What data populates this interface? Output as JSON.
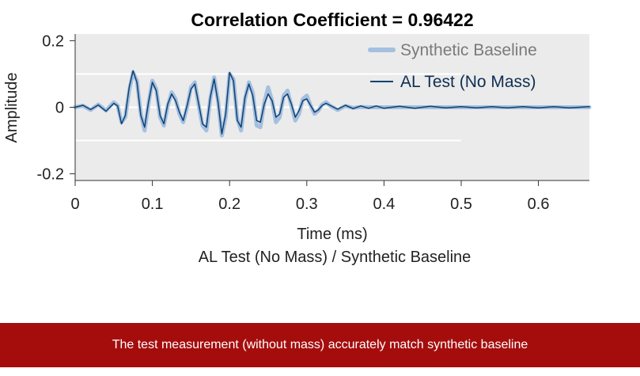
{
  "chart_data": {
    "type": "line",
    "title": "Correlation Coefficient = 0.96422",
    "xlabel": "Time (ms)",
    "ylabel": "Amplitude",
    "xlim": [
      0,
      0.666
    ],
    "ylim": [
      -0.22,
      0.22
    ],
    "xticks": [
      0,
      0.1,
      0.2,
      0.3,
      0.4,
      0.5,
      0.6
    ],
    "xtick_labels": [
      "0",
      "0.1",
      "0.2",
      "0.3",
      "0.4",
      "0.5",
      "0.6"
    ],
    "yticks": [
      0.2,
      0,
      -0.2
    ],
    "ytick_labels": [
      "0.2",
      "0",
      "-0.2"
    ],
    "grid": "partial horizontal white lines at 0.1, 0, -0.1",
    "legend_placement": "top-right",
    "background_color": "#ebebeb",
    "series": [
      {
        "name": "Synthetic Baseline",
        "color": "#a5bfdf",
        "x": [
          0,
          0.01,
          0.02,
          0.03,
          0.04,
          0.05,
          0.055,
          0.06,
          0.065,
          0.07,
          0.075,
          0.08,
          0.085,
          0.09,
          0.095,
          0.1,
          0.105,
          0.11,
          0.115,
          0.12,
          0.125,
          0.13,
          0.135,
          0.14,
          0.145,
          0.15,
          0.155,
          0.16,
          0.165,
          0.17,
          0.175,
          0.18,
          0.185,
          0.19,
          0.195,
          0.2,
          0.205,
          0.21,
          0.215,
          0.22,
          0.225,
          0.23,
          0.235,
          0.24,
          0.245,
          0.25,
          0.255,
          0.26,
          0.265,
          0.27,
          0.275,
          0.28,
          0.285,
          0.29,
          0.295,
          0.3,
          0.305,
          0.31,
          0.315,
          0.32,
          0.325,
          0.33,
          0.34,
          0.35,
          0.36,
          0.37,
          0.38,
          0.39,
          0.4,
          0.42,
          0.44,
          0.46,
          0.48,
          0.5,
          0.52,
          0.54,
          0.56,
          0.58,
          0.6,
          0.62,
          0.64,
          0.666
        ],
        "y": [
          0,
          0.005,
          -0.008,
          0.008,
          -0.01,
          0.015,
          0.005,
          -0.045,
          -0.03,
          0.05,
          0.105,
          0.08,
          -0.02,
          -0.07,
          0.01,
          0.08,
          0.055,
          -0.03,
          -0.055,
          0.005,
          0.045,
          0.025,
          -0.02,
          -0.045,
          0,
          0.06,
          0.075,
          0.005,
          -0.055,
          -0.07,
          0.025,
          0.09,
          0.02,
          -0.085,
          -0.03,
          0.1,
          0.085,
          -0.035,
          -0.07,
          0.025,
          0.075,
          0.045,
          -0.055,
          -0.06,
          0.015,
          0.06,
          0.02,
          -0.045,
          -0.03,
          0.035,
          0.05,
          0.005,
          -0.04,
          -0.02,
          0.025,
          0.035,
          0.005,
          -0.02,
          -0.01,
          0.008,
          0.015,
          0.005,
          -0.008,
          0.004,
          -0.002,
          0.001,
          0,
          0,
          0,
          0,
          0,
          0,
          0,
          0,
          0,
          0,
          0,
          0,
          0,
          0,
          0,
          0
        ]
      },
      {
        "name": "AL Test (No Mass)",
        "color": "#0d4272",
        "x": [
          0,
          0.01,
          0.02,
          0.03,
          0.04,
          0.05,
          0.055,
          0.06,
          0.065,
          0.07,
          0.075,
          0.08,
          0.085,
          0.09,
          0.095,
          0.1,
          0.105,
          0.11,
          0.115,
          0.12,
          0.125,
          0.13,
          0.135,
          0.14,
          0.145,
          0.15,
          0.155,
          0.16,
          0.165,
          0.17,
          0.175,
          0.18,
          0.185,
          0.19,
          0.195,
          0.2,
          0.205,
          0.21,
          0.215,
          0.22,
          0.225,
          0.23,
          0.235,
          0.24,
          0.245,
          0.25,
          0.255,
          0.26,
          0.265,
          0.27,
          0.275,
          0.28,
          0.285,
          0.29,
          0.295,
          0.3,
          0.305,
          0.31,
          0.315,
          0.32,
          0.325,
          0.33,
          0.34,
          0.35,
          0.36,
          0.37,
          0.38,
          0.39,
          0.4,
          0.42,
          0.44,
          0.46,
          0.48,
          0.5,
          0.52,
          0.54,
          0.56,
          0.58,
          0.6,
          0.62,
          0.64,
          0.666
        ],
        "y": [
          0,
          0.006,
          -0.007,
          0.007,
          -0.012,
          0.012,
          0.004,
          -0.05,
          -0.025,
          0.06,
          0.11,
          0.075,
          -0.025,
          -0.06,
          0.015,
          0.075,
          0.05,
          -0.025,
          -0.05,
          0.01,
          0.04,
          0.02,
          -0.015,
          -0.04,
          0.005,
          0.055,
          0.07,
          0.01,
          -0.05,
          -0.06,
          0.03,
          0.085,
          0.015,
          -0.08,
          -0.02,
          0.105,
          0.08,
          -0.04,
          -0.06,
          0.03,
          0.07,
          0.035,
          -0.04,
          -0.045,
          0.01,
          0.04,
          0.02,
          -0.03,
          -0.02,
          0.03,
          0.04,
          0.01,
          -0.03,
          -0.01,
          0.02,
          0.025,
          0.005,
          -0.015,
          -0.008,
          0.006,
          0.012,
          0.006,
          -0.006,
          0.006,
          -0.004,
          0.004,
          -0.003,
          0.004,
          -0.003,
          0.003,
          -0.003,
          0.003,
          -0.002,
          0.002,
          -0.002,
          0.002,
          -0.002,
          0.002,
          -0.002,
          0.002,
          -0.002,
          0.002
        ]
      }
    ]
  },
  "caption": "AL Test (No Mass) / Synthetic Baseline",
  "banner": {
    "text": "The test measurement (without mass) accurately match synthetic baseline",
    "color": "#a50d0d"
  }
}
